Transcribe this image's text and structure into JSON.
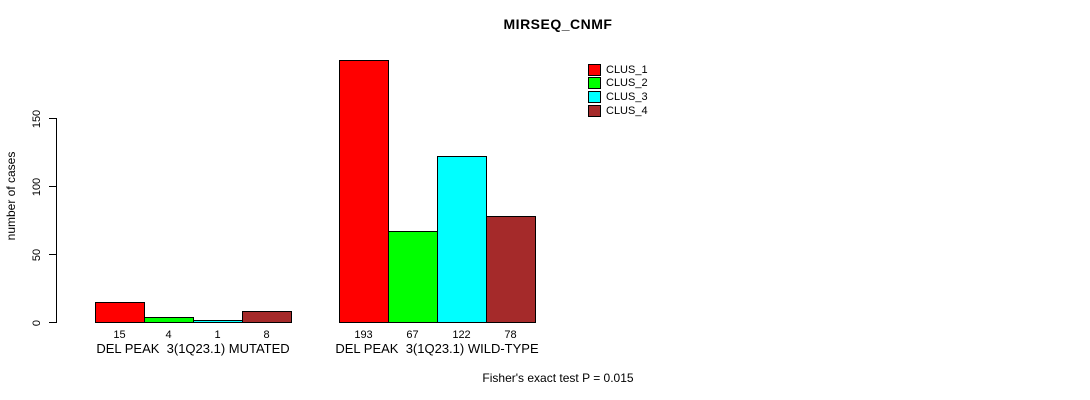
{
  "chart_data": {
    "type": "bar",
    "title": "MIRSEQ_CNMF",
    "ylabel": "number of cases",
    "xlabel": "",
    "categories": [
      "DEL PEAK  3(1Q23.1) MUTATED",
      "DEL PEAK  3(1Q23.1) WILD-TYPE"
    ],
    "series": [
      {
        "name": "CLUS_1",
        "color": "#FF0000",
        "values": [
          15,
          193
        ]
      },
      {
        "name": "CLUS_2",
        "color": "#00FF00",
        "values": [
          4,
          67
        ]
      },
      {
        "name": "CLUS_3",
        "color": "#00FFFF",
        "values": [
          1,
          122
        ]
      },
      {
        "name": "CLUS_4",
        "color": "#A52A2A",
        "values": [
          8,
          78
        ]
      }
    ],
    "bar_value_labels": [
      [
        15,
        4,
        1,
        8
      ],
      [
        193,
        67,
        122,
        78
      ]
    ],
    "yticks": [
      0,
      50,
      100,
      150
    ],
    "ylim": [
      0,
      200
    ],
    "grid": false,
    "legend_position": "inside-top-right",
    "annotation": "Fisher's exact test P = 0.015",
    "bar_border_color": "#000000",
    "background_color": "#FFFFFF"
  }
}
